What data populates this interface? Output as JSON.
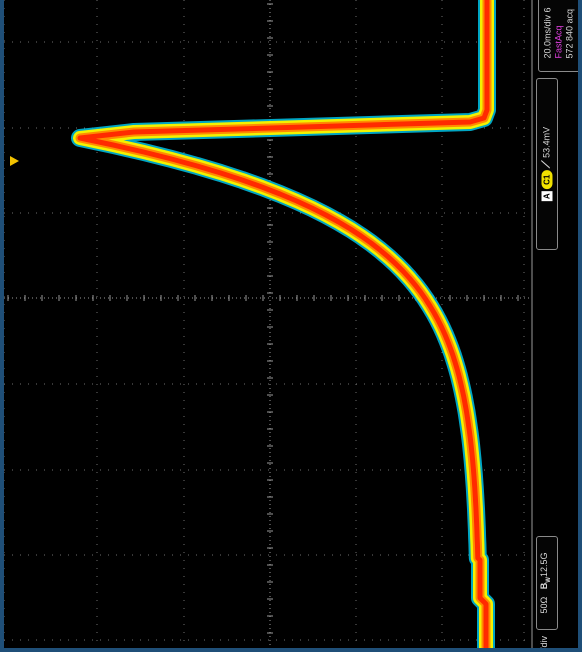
{
  "display": {
    "colors": {
      "frame": "#1f4f78",
      "screen": "#000000",
      "grid": "#6e6e6e",
      "trace_core": "#ff2a00",
      "trace_mid": "#ff8c00",
      "trace_edge": "#f2f200",
      "trace_halo": "#00b7d8",
      "marker": "#f2c200"
    },
    "ground_marker_icon": "triangle-marker-icon"
  },
  "status": {
    "timebase": "20.0ms/div 6",
    "acq_mode": "FastAcq",
    "acq_count": "572 840 acq",
    "trigger_source": "A",
    "trigger_channel": "C1",
    "trigger_slope_icon": "rising-edge-icon",
    "trigger_level": "53.4mV",
    "impedance": "50Ω",
    "bandwidth": "12.5G",
    "bandwidth_icon": "bandwidth-limit-icon",
    "scale_fragment": "/div"
  }
}
